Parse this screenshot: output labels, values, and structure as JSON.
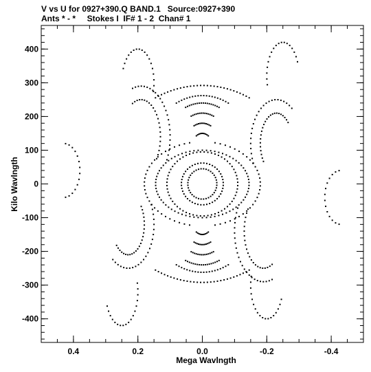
{
  "chart_data": {
    "type": "scatter",
    "title": "V vs U for 0927+390.Q BAND.1   Source:0927+390",
    "subtitle": "Ants * - *     Stokes I  IF# 1 - 2  Chan# 1",
    "xlabel": "Mega Wavlngth",
    "ylabel": "Kilo Wavlngth",
    "xlim": [
      0.5,
      -0.5
    ],
    "ylim": [
      -470,
      470
    ],
    "x_ticks": [
      0.4,
      0.2,
      0.0,
      -0.2,
      -0.4
    ],
    "x_tick_labels": [
      "0.4",
      "0.2",
      "0.0",
      "-0.2",
      "-0.4"
    ],
    "y_ticks": [
      400,
      300,
      200,
      100,
      0,
      -100,
      -200,
      -300,
      -400
    ],
    "y_tick_labels": [
      "400",
      "300",
      "200",
      "100",
      "0",
      "-100",
      "-200",
      "-300",
      "-400"
    ],
    "x_minor_step": 0.05,
    "y_minor_step": 20,
    "grid": false,
    "tracks": [
      {
        "cx": 0,
        "cy": 0,
        "a": 0.045,
        "b": 45,
        "start": 0,
        "end": 360,
        "n": 36
      },
      {
        "cx": 0,
        "cy": 0,
        "a": 0.065,
        "b": 62,
        "start": 0,
        "end": 360,
        "n": 44
      },
      {
        "cx": 0,
        "cy": 0,
        "a": 0.11,
        "b": 95,
        "start": 0,
        "end": 360,
        "n": 60
      },
      {
        "cx": 0,
        "cy": 0,
        "a": 0.145,
        "b": 100,
        "start": 0,
        "end": 360,
        "n": 70
      },
      {
        "cx": 0,
        "cy": 0,
        "a": 0.18,
        "b": 125,
        "start": 100,
        "end": 260,
        "n": 30
      },
      {
        "cx": 0,
        "cy": 0,
        "a": 0.18,
        "b": 125,
        "start": -80,
        "end": 80,
        "n": 30
      },
      {
        "cx": 0,
        "cy": 0,
        "a": 0.3,
        "b": 292,
        "start": 60,
        "end": 120,
        "n": 30
      },
      {
        "cx": 0,
        "cy": 0,
        "a": 0.3,
        "b": 292,
        "start": 240,
        "end": 300,
        "n": 30
      },
      {
        "cx": 0,
        "cy": 0,
        "a": 0.2,
        "b": 262,
        "start": 65,
        "end": 115,
        "n": 20
      },
      {
        "cx": 0,
        "cy": 0,
        "a": 0.2,
        "b": 262,
        "start": 245,
        "end": 295,
        "n": 20
      },
      {
        "cx": 0,
        "cy": 0,
        "a": 0.16,
        "b": 240,
        "start": 70,
        "end": 110,
        "n": 18
      },
      {
        "cx": 0,
        "cy": 0,
        "a": 0.16,
        "b": 240,
        "start": 250,
        "end": 290,
        "n": 18
      },
      {
        "cx": 0,
        "cy": 0,
        "a": 0.12,
        "b": 210,
        "start": 72,
        "end": 108,
        "n": 14
      },
      {
        "cx": 0,
        "cy": 0,
        "a": 0.12,
        "b": 210,
        "start": 252,
        "end": 288,
        "n": 14
      },
      {
        "cx": 0,
        "cy": 0,
        "a": 0.09,
        "b": 180,
        "start": 72,
        "end": 108,
        "n": 12
      },
      {
        "cx": 0,
        "cy": 0,
        "a": 0.09,
        "b": 180,
        "start": 252,
        "end": 288,
        "n": 12
      },
      {
        "cx": 0,
        "cy": 0,
        "a": 0.06,
        "b": 150,
        "start": 70,
        "end": 110,
        "n": 10
      },
      {
        "cx": 0,
        "cy": 0,
        "a": 0.06,
        "b": 150,
        "start": 250,
        "end": 290,
        "n": 10
      },
      {
        "cx": 0.19,
        "cy": 140,
        "a": 0.06,
        "b": 110,
        "start": 60,
        "end": 220,
        "n": 22
      },
      {
        "cx": 0.19,
        "cy": 140,
        "a": 0.09,
        "b": 150,
        "start": 70,
        "end": 210,
        "n": 24
      },
      {
        "cx": -0.19,
        "cy": -140,
        "a": 0.06,
        "b": 110,
        "start": 240,
        "end": 400,
        "n": 22
      },
      {
        "cx": -0.19,
        "cy": -140,
        "a": 0.09,
        "b": 150,
        "start": 250,
        "end": 390,
        "n": 24
      },
      {
        "cx": -0.23,
        "cy": 120,
        "a": 0.05,
        "b": 90,
        "start": -40,
        "end": 140,
        "n": 24
      },
      {
        "cx": -0.23,
        "cy": 120,
        "a": 0.08,
        "b": 130,
        "start": -30,
        "end": 130,
        "n": 24
      },
      {
        "cx": 0.23,
        "cy": -120,
        "a": 0.05,
        "b": 90,
        "start": 140,
        "end": 320,
        "n": 24
      },
      {
        "cx": 0.23,
        "cy": -120,
        "a": 0.08,
        "b": 130,
        "start": 150,
        "end": 310,
        "n": 24
      },
      {
        "cx": 0.2,
        "cy": 300,
        "a": 0.05,
        "b": 100,
        "start": 20,
        "end": 200,
        "n": 18
      },
      {
        "cx": -0.2,
        "cy": -300,
        "a": 0.05,
        "b": 100,
        "start": 200,
        "end": 380,
        "n": 18
      },
      {
        "cx": -0.25,
        "cy": 320,
        "a": 0.05,
        "b": 100,
        "start": -20,
        "end": 160,
        "n": 18
      },
      {
        "cx": 0.25,
        "cy": -320,
        "a": 0.05,
        "b": 100,
        "start": 160,
        "end": 340,
        "n": 18
      },
      {
        "cx": 0.43,
        "cy": 40,
        "a": 0.05,
        "b": 80,
        "start": 90,
        "end": 270,
        "n": 14
      },
      {
        "cx": -0.43,
        "cy": -40,
        "a": 0.05,
        "b": 80,
        "start": -90,
        "end": 90,
        "n": 14
      }
    ]
  }
}
